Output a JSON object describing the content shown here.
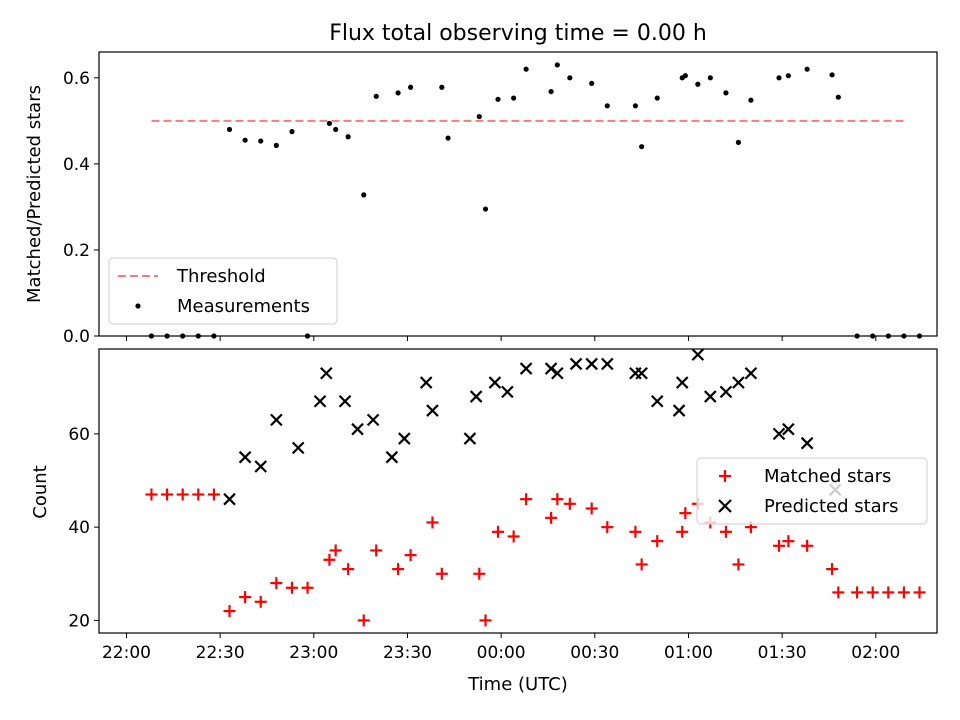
{
  "chart_data": [
    {
      "type": "scatter",
      "title": "Flux total observing time = 0.00 h",
      "xlabel": "",
      "ylabel": "Matched/Predicted stars",
      "xlim_minutes_from_22_00": [
        -8.8,
        259.6
      ],
      "ylim": [
        0,
        0.66
      ],
      "yticks": [
        "0.0",
        "0.2",
        "0.4",
        "0.6"
      ],
      "grid": false,
      "legend_position": "lower-left",
      "threshold": {
        "name": "Threshold",
        "value": 0.5,
        "x_start": 8,
        "x_end": 250,
        "color": "#f08080"
      },
      "series": [
        {
          "name": "Measurements",
          "color": "#000000",
          "x": [
            "22:08",
            "22:13",
            "22:18",
            "22:23",
            "22:28",
            "22:33",
            "22:38",
            "22:43",
            "22:48",
            "22:53",
            "22:58",
            "23:05",
            "23:07",
            "23:11",
            "23:16",
            "23:20",
            "23:27",
            "23:31",
            "23:41",
            "23:43",
            "23:53",
            "23:55",
            "23:59",
            "00:04",
            "00:08",
            "00:16",
            "00:18",
            "00:22",
            "00:29",
            "00:34",
            "00:43",
            "00:45",
            "00:50",
            "00:58",
            "00:59",
            "01:03",
            "01:07",
            "01:12",
            "01:16",
            "01:20",
            "01:29",
            "01:32",
            "01:38",
            "01:46",
            "01:48",
            "01:54",
            "01:59",
            "02:04",
            "02:09",
            "02:14"
          ],
          "y": [
            0,
            0,
            0,
            0,
            0,
            0.48,
            0.455,
            0.453,
            0.443,
            0.475,
            0,
            0.494,
            0.48,
            0.463,
            0.328,
            0.557,
            0.565,
            0.578,
            0.578,
            0.46,
            0.51,
            0.295,
            0.55,
            0.553,
            0.62,
            0.568,
            0.63,
            0.6,
            0.587,
            0.535,
            0.535,
            0.44,
            0.553,
            0.6,
            0.605,
            0.585,
            0.6,
            0.565,
            0.45,
            0.548,
            0.6,
            0.605,
            0.62,
            0.607,
            0.555,
            0,
            0,
            0,
            0,
            0
          ]
        }
      ]
    },
    {
      "type": "scatter",
      "title": "",
      "xlabel": "Time (UTC)",
      "ylabel": "Count",
      "xlim_minutes_from_22_00": [
        -8.8,
        259.6
      ],
      "ylim": [
        17.3,
        78.2
      ],
      "yticks": [
        "20",
        "40",
        "60"
      ],
      "xticks": [
        "22:00",
        "22:30",
        "23:00",
        "23:30",
        "00:00",
        "00:30",
        "01:00",
        "01:30",
        "02:00"
      ],
      "grid": false,
      "legend_position": "center-right",
      "series": [
        {
          "name": "Matched stars",
          "marker": "plus",
          "color": "#ff0000",
          "x": [
            "22:08",
            "22:13",
            "22:18",
            "22:23",
            "22:28",
            "22:33",
            "22:38",
            "22:43",
            "22:48",
            "22:53",
            "22:58",
            "23:05",
            "23:07",
            "23:11",
            "23:16",
            "23:20",
            "23:27",
            "23:31",
            "23:38",
            "23:41",
            "23:53",
            "23:55",
            "23:59",
            "00:04",
            "00:08",
            "00:16",
            "00:18",
            "00:22",
            "00:29",
            "00:34",
            "00:43",
            "00:45",
            "00:50",
            "00:58",
            "00:59",
            "01:03",
            "01:07",
            "01:12",
            "01:16",
            "01:20",
            "01:29",
            "01:32",
            "01:38",
            "01:46",
            "01:48",
            "01:54",
            "01:59",
            "02:04",
            "02:09",
            "02:14"
          ],
          "y": [
            47,
            47,
            47,
            47,
            47,
            22,
            25,
            24,
            28,
            27,
            27,
            33,
            35,
            31,
            20,
            35,
            31,
            34,
            41,
            30,
            30,
            20,
            39,
            38,
            46,
            42,
            46,
            45,
            44,
            40,
            39,
            32,
            37,
            39,
            43,
            45,
            41,
            39,
            32,
            40,
            36,
            37,
            36,
            31,
            26,
            26,
            26,
            26,
            26,
            26
          ]
        },
        {
          "name": "Predicted stars",
          "marker": "x",
          "color": "#000000",
          "x": [
            "22:33",
            "22:38",
            "22:43",
            "22:48",
            "22:55",
            "23:02",
            "23:04",
            "23:10",
            "23:14",
            "23:19",
            "23:25",
            "23:29",
            "23:36",
            "23:38",
            "23:50",
            "23:52",
            "23:58",
            "00:02",
            "00:08",
            "00:16",
            "00:18",
            "00:24",
            "00:29",
            "00:34",
            "00:43",
            "00:45",
            "00:50",
            "00:57",
            "00:58",
            "01:03",
            "01:07",
            "01:12",
            "01:16",
            "01:20",
            "01:29",
            "01:32",
            "01:38",
            "01:47"
          ],
          "y": [
            46,
            55,
            53,
            63,
            57,
            67,
            73,
            67,
            61,
            63,
            55,
            59,
            71,
            65,
            59,
            68,
            71,
            69,
            74,
            74,
            73,
            75,
            75,
            75,
            73,
            73,
            67,
            65,
            71,
            77,
            68,
            69,
            71,
            73,
            60,
            61,
            58,
            48
          ]
        }
      ]
    }
  ]
}
